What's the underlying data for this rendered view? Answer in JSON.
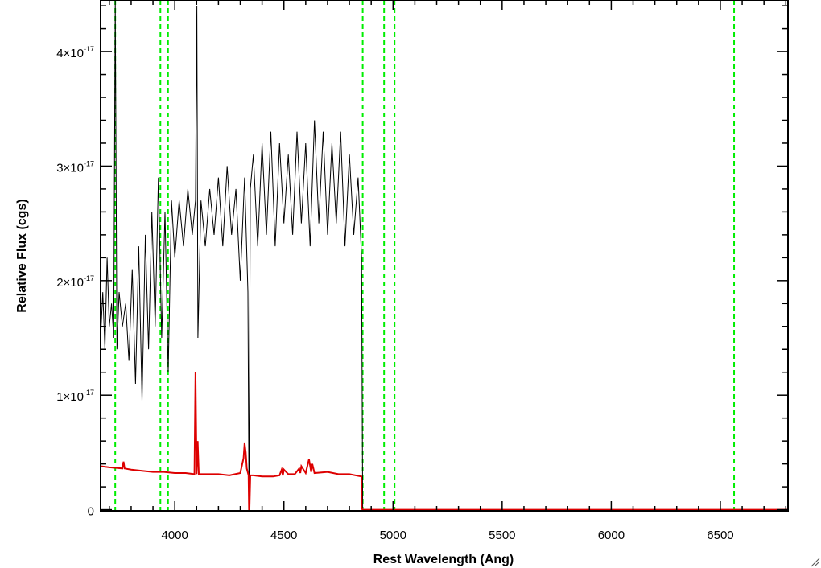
{
  "chart_data": {
    "type": "line",
    "title": "",
    "xlabel": "Rest Wavelength (Ang)",
    "ylabel": "Relative Flux (cgs)",
    "xlim": [
      3660,
      6810
    ],
    "ylim": [
      -1e-19,
      4.45e-17
    ],
    "grid": false,
    "x_ticks": [
      {
        "value": 4000,
        "label": "4000"
      },
      {
        "value": 4500,
        "label": "4500"
      },
      {
        "value": 5000,
        "label": "5000"
      },
      {
        "value": 5500,
        "label": "5500"
      },
      {
        "value": 6000,
        "label": "6000"
      },
      {
        "value": 6500,
        "label": "6500"
      }
    ],
    "y_ticks": [
      {
        "value": 0,
        "mantissa": "0",
        "exponent": ""
      },
      {
        "value": 1e-17,
        "mantissa": "1×10",
        "exponent": "-17"
      },
      {
        "value": 2e-17,
        "mantissa": "2×10",
        "exponent": "-17"
      },
      {
        "value": 3e-17,
        "mantissa": "3×10",
        "exponent": "-17"
      },
      {
        "value": 4e-17,
        "mantissa": "4×10",
        "exponent": "-17"
      }
    ],
    "vertical_lines": [
      3727,
      3934,
      3969,
      4861,
      4959,
      5007,
      6563
    ],
    "colors": {
      "spectrum": "#000000",
      "model": "#dd0000",
      "lines": "#00ee00"
    },
    "series": [
      {
        "color": "#000000",
        "x": [
          3660,
          3670,
          3680,
          3690,
          3700,
          3710,
          3720,
          3727,
          3735,
          3745,
          3760,
          3775,
          3790,
          3805,
          3820,
          3835,
          3850,
          3865,
          3880,
          3895,
          3910,
          3925,
          3940,
          3955,
          3970,
          3985,
          4000,
          4020,
          4040,
          4060,
          4080,
          4095,
          4101,
          4106,
          4120,
          4140,
          4160,
          4180,
          4200,
          4220,
          4240,
          4260,
          4280,
          4300,
          4320,
          4335,
          4340,
          4346,
          4360,
          4380,
          4400,
          4420,
          4440,
          4460,
          4480,
          4500,
          4520,
          4540,
          4560,
          4580,
          4600,
          4620,
          4640,
          4660,
          4680,
          4700,
          4720,
          4740,
          4760,
          4780,
          4800,
          4820,
          4840,
          4856,
          4861,
          4870,
          4900,
          5000,
          5500,
          6000,
          6500,
          6810
        ],
        "y": [
          1.5e-17,
          1.9e-17,
          1.4e-17,
          2.2e-17,
          1.6e-17,
          1.8e-17,
          1.5e-17,
          4.45e-17,
          1.4e-17,
          1.9e-17,
          1.6e-17,
          1.8e-17,
          1.3e-17,
          2.1e-17,
          1.1e-17,
          2.3e-17,
          9.5e-18,
          2.4e-17,
          1.4e-17,
          2.6e-17,
          1.6e-17,
          2.9e-17,
          1.5e-17,
          2.6e-17,
          1.2e-17,
          2.7e-17,
          2.2e-17,
          2.7e-17,
          2.3e-17,
          2.8e-17,
          2.4e-17,
          2.7e-17,
          4.4e-17,
          1.5e-17,
          2.7e-17,
          2.3e-17,
          2.8e-17,
          2.4e-17,
          2.9e-17,
          2.3e-17,
          3e-17,
          2.4e-17,
          2.8e-17,
          2e-17,
          2.9e-17,
          1.9e-17,
          -1e-19,
          2.8e-17,
          3.1e-17,
          2.3e-17,
          3.2e-17,
          2.4e-17,
          3.3e-17,
          2.3e-17,
          3.2e-17,
          2.5e-17,
          3.1e-17,
          2.4e-17,
          3.3e-17,
          2.5e-17,
          3.2e-17,
          2.3e-17,
          3.4e-17,
          2.5e-17,
          3.3e-17,
          2.4e-17,
          3.2e-17,
          2.5e-17,
          3.3e-17,
          2.3e-17,
          3.1e-17,
          2.4e-17,
          2.9e-17,
          2.2e-17,
          0,
          0,
          0,
          0,
          0,
          0,
          0,
          0
        ]
      },
      {
        "color": "#dd0000",
        "x": [
          3660,
          3700,
          3760,
          3765,
          3770,
          3800,
          3850,
          3900,
          3950,
          4000,
          4050,
          4090,
          4095,
          4100,
          4105,
          4110,
          4150,
          4200,
          4250,
          4300,
          4315,
          4320,
          4325,
          4330,
          4338,
          4340,
          4342,
          4346,
          4360,
          4400,
          4450,
          4480,
          4490,
          4495,
          4500,
          4520,
          4550,
          4570,
          4575,
          4580,
          4600,
          4615,
          4625,
          4630,
          4640,
          4700,
          4750,
          4800,
          4855,
          4856,
          4860,
          4900,
          5000,
          5500,
          6000,
          6500,
          6810
        ],
        "y": [
          3.8e-18,
          3.7e-18,
          3.6e-18,
          4.2e-18,
          3.6e-18,
          3.5e-18,
          3.4e-18,
          3.3e-18,
          3.3e-18,
          3.2e-18,
          3.2e-18,
          3.1e-18,
          1.2e-17,
          3.1e-18,
          6e-18,
          3.1e-18,
          3.1e-18,
          3.1e-18,
          3e-18,
          3.2e-18,
          4.5e-18,
          5.8e-18,
          5e-18,
          3.6e-18,
          3e-18,
          -1e-19,
          -1e-19,
          3e-18,
          3e-18,
          2.9e-18,
          2.9e-18,
          3e-18,
          3.5e-18,
          3e-18,
          3.5e-18,
          3.1e-18,
          3.1e-18,
          3.6e-18,
          3.2e-18,
          3.8e-18,
          3.2e-18,
          4.4e-18,
          3.3e-18,
          4e-18,
          3.2e-18,
          3.3e-18,
          3.1e-18,
          3.1e-18,
          2.9e-18,
          2e-19,
          0,
          0,
          0,
          0,
          0,
          0,
          0
        ]
      }
    ]
  }
}
